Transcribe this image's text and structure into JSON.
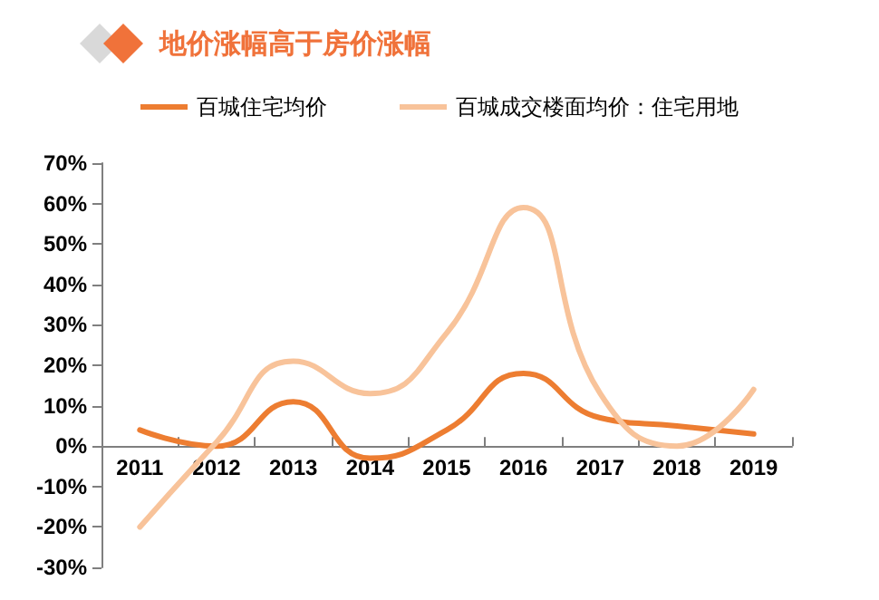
{
  "chart_data": {
    "type": "line",
    "title": "地价涨幅高于房价涨幅",
    "categories": [
      "2011",
      "2012",
      "2013",
      "2014",
      "2015",
      "2016",
      "2017",
      "2018",
      "2019"
    ],
    "series": [
      {
        "name": "百城住宅均价",
        "color": "#ed7d31",
        "values": [
          4,
          0,
          11,
          -3,
          4,
          18,
          7,
          5,
          3
        ]
      },
      {
        "name": "百城成交楼面均价：住宅用地",
        "color": "#f8c39a",
        "values": [
          -20,
          1,
          21,
          13,
          28,
          59,
          13,
          0,
          14
        ]
      }
    ],
    "ylim": [
      -30,
      70
    ],
    "yticks": [
      {
        "value": -30,
        "label": "-30%"
      },
      {
        "value": -20,
        "label": "-20%"
      },
      {
        "value": -10,
        "label": "-10%"
      },
      {
        "value": 0,
        "label": "0%"
      },
      {
        "value": 10,
        "label": "10%"
      },
      {
        "value": 20,
        "label": "20%"
      },
      {
        "value": 30,
        "label": "30%"
      },
      {
        "value": 40,
        "label": "40%"
      },
      {
        "value": 50,
        "label": "50%"
      },
      {
        "value": 60,
        "label": "60%"
      },
      {
        "value": 70,
        "label": "70%"
      }
    ],
    "grid": false,
    "legend": "top",
    "marker": "none",
    "line_style": "solid"
  }
}
